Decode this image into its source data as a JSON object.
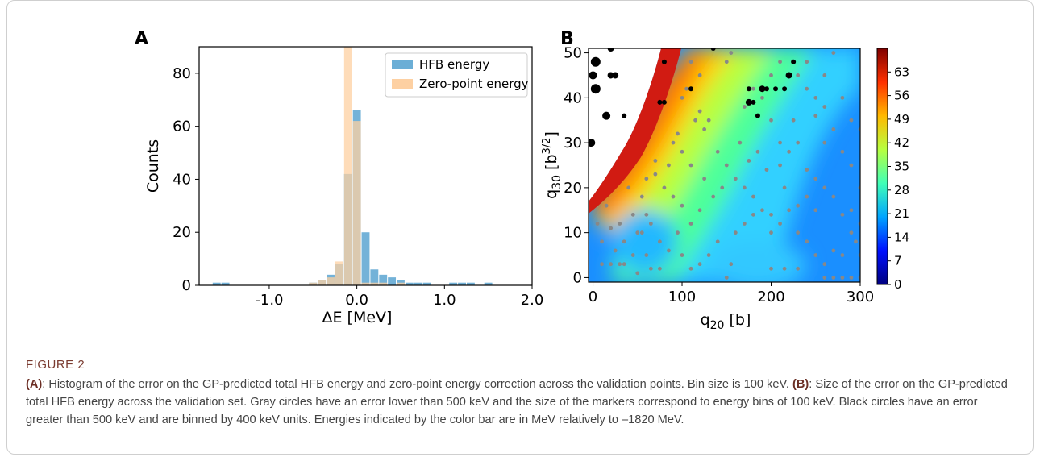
{
  "panels": {
    "a_label": "A",
    "b_label": "B"
  },
  "caption": {
    "title": "FIGURE 2",
    "a_tag": "(A)",
    "a_text": ": Histogram of the error on the GP-predicted total HFB energy and zero-point energy correction across the validation points. Bin size is 100 keV. ",
    "b_tag": "(B)",
    "b_text": ": Size of the error on the GP-predicted total HFB energy across the validation set. Gray circles have an error lower than 500 keV and the size of the markers correspond to energy bins of 100 keV. Black circles have an error greater than 500 keV and are binned by 400 keV units. Energies indicated by the color bar are in MeV relatively to –1820 MeV."
  },
  "chart_data": [
    {
      "type": "bar",
      "subtype": "overlaid-histogram",
      "xlabel": "ΔE [MeV]",
      "ylabel": "Counts",
      "xlim": [
        -1.8,
        2.0
      ],
      "ylim": [
        0,
        90
      ],
      "xticks": [
        -1.0,
        0.0,
        1.0,
        2.0
      ],
      "xtick_labels": [
        "-1.0",
        "0.0",
        "1.0",
        "2.0"
      ],
      "yticks": [
        0,
        20,
        40,
        60,
        80
      ],
      "ytick_labels": [
        "0",
        "20",
        "40",
        "60",
        "80"
      ],
      "legend_position": "top-right",
      "bin_width": 0.1,
      "series": [
        {
          "name": "HFB energy",
          "color": "#6baed6",
          "bins": [
            {
              "x": -1.6,
              "count": 1
            },
            {
              "x": -1.5,
              "count": 1
            },
            {
              "x": -0.5,
              "count": 1
            },
            {
              "x": -0.4,
              "count": 2
            },
            {
              "x": -0.3,
              "count": 4
            },
            {
              "x": -0.2,
              "count": 8
            },
            {
              "x": -0.1,
              "count": 42
            },
            {
              "x": 0.0,
              "count": 66
            },
            {
              "x": 0.1,
              "count": 20
            },
            {
              "x": 0.2,
              "count": 6
            },
            {
              "x": 0.3,
              "count": 4
            },
            {
              "x": 0.4,
              "count": 3
            },
            {
              "x": 0.5,
              "count": 2
            },
            {
              "x": 0.6,
              "count": 1
            },
            {
              "x": 0.7,
              "count": 1
            },
            {
              "x": 0.8,
              "count": 1
            },
            {
              "x": 1.1,
              "count": 1
            },
            {
              "x": 1.2,
              "count": 1
            },
            {
              "x": 1.3,
              "count": 1
            },
            {
              "x": 1.5,
              "count": 1
            }
          ]
        },
        {
          "name": "Zero-point energy",
          "color": "#fdd0a2",
          "bins": [
            {
              "x": -0.5,
              "count": 1
            },
            {
              "x": -0.4,
              "count": 2
            },
            {
              "x": -0.3,
              "count": 3
            },
            {
              "x": -0.2,
              "count": 9
            },
            {
              "x": -0.1,
              "count": 90
            },
            {
              "x": 0.0,
              "count": 62
            },
            {
              "x": 0.1,
              "count": 1
            },
            {
              "x": 0.2,
              "count": 1
            },
            {
              "x": 0.3,
              "count": 1
            },
            {
              "x": 0.5,
              "count": 1
            }
          ]
        }
      ]
    },
    {
      "type": "heatmap",
      "subtype": "contour-with-scatter",
      "xlabel": "q₂₀ [b]",
      "ylabel": "q₃₀ [b³ᐟ²]",
      "xlabel_main": "q",
      "xlabel_sub": "20",
      "xlabel_unit": " [b]",
      "ylabel_main": "q",
      "ylabel_sub": "30",
      "ylabel_unit": " [b",
      "ylabel_sup": "3/2",
      "ylabel_close": "]",
      "xlim": [
        -5,
        300
      ],
      "ylim": [
        -1,
        51
      ],
      "xticks": [
        0,
        100,
        200,
        300
      ],
      "yticks": [
        0,
        10,
        20,
        30,
        40,
        50
      ],
      "colorbar": {
        "min": 0,
        "max": 70,
        "ticks": [
          0,
          7,
          14,
          21,
          28,
          35,
          42,
          49,
          56,
          63
        ],
        "colors": [
          "#00007f",
          "#0010ff",
          "#00a4ff",
          "#40ffb7",
          "#b7ff40",
          "#ffb900",
          "#ff3000",
          "#7f0000"
        ]
      },
      "gray_points_error_lt_500keV": [
        [
          5,
          12
        ],
        [
          10,
          8
        ],
        [
          20,
          3
        ],
        [
          25,
          6
        ],
        [
          30,
          3
        ],
        [
          35,
          3
        ],
        [
          45,
          5
        ],
        [
          50,
          10
        ],
        [
          55,
          18
        ],
        [
          60,
          22
        ],
        [
          70,
          26
        ],
        [
          75,
          2
        ],
        [
          85,
          25
        ],
        [
          90,
          30
        ],
        [
          95,
          32
        ],
        [
          100,
          28
        ],
        [
          110,
          25
        ],
        [
          115,
          35
        ],
        [
          120,
          37
        ],
        [
          125,
          33
        ],
        [
          130,
          35
        ],
        [
          140,
          28
        ],
        [
          150,
          25
        ],
        [
          160,
          22
        ],
        [
          170,
          20
        ],
        [
          180,
          18
        ],
        [
          190,
          15
        ],
        [
          200,
          10
        ],
        [
          210,
          25
        ],
        [
          220,
          28
        ],
        [
          230,
          30
        ],
        [
          240,
          24
        ],
        [
          250,
          22
        ],
        [
          260,
          20
        ],
        [
          270,
          18
        ],
        [
          280,
          14
        ],
        [
          290,
          10
        ],
        [
          295,
          8
        ],
        [
          260,
          0
        ],
        [
          270,
          0
        ],
        [
          280,
          0
        ],
        [
          290,
          0
        ],
        [
          300,
          0
        ],
        [
          150,
          0
        ],
        [
          155,
          3
        ],
        [
          130,
          5
        ],
        [
          140,
          8
        ],
        [
          160,
          10
        ],
        [
          170,
          12
        ],
        [
          180,
          14
        ],
        [
          200,
          14
        ],
        [
          210,
          12
        ],
        [
          220,
          15
        ],
        [
          230,
          16
        ],
        [
          240,
          18
        ],
        [
          250,
          15
        ],
        [
          230,
          10
        ],
        [
          240,
          8
        ],
        [
          250,
          5
        ],
        [
          260,
          3
        ],
        [
          270,
          6
        ],
        [
          280,
          5
        ],
        [
          120,
          15
        ],
        [
          110,
          12
        ],
        [
          100,
          16
        ],
        [
          90,
          18
        ],
        [
          80,
          20
        ],
        [
          70,
          23
        ],
        [
          60,
          14
        ],
        [
          55,
          10
        ],
        [
          40,
          20
        ],
        [
          30,
          12
        ],
        [
          35,
          8
        ],
        [
          20,
          11
        ],
        [
          15,
          16
        ],
        [
          60,
          5
        ],
        [
          65,
          2
        ],
        [
          100,
          40
        ],
        [
          105,
          42
        ],
        [
          150,
          48
        ],
        [
          155,
          50
        ],
        [
          200,
          45
        ],
        [
          210,
          48
        ],
        [
          240,
          42
        ],
        [
          250,
          40
        ],
        [
          260,
          45
        ],
        [
          270,
          50
        ],
        [
          280,
          40
        ],
        [
          290,
          35
        ],
        [
          300,
          33
        ],
        [
          280,
          28
        ],
        [
          290,
          25
        ],
        [
          300,
          20
        ],
        [
          290,
          15
        ],
        [
          300,
          12
        ],
        [
          300,
          5
        ],
        [
          260,
          30
        ],
        [
          270,
          33
        ],
        [
          200,
          35
        ],
        [
          210,
          30
        ],
        [
          190,
          40
        ],
        [
          180,
          42
        ],
        [
          170,
          38
        ],
        [
          120,
          45
        ],
        [
          110,
          48
        ],
        [
          240,
          48
        ],
        [
          230,
          45
        ],
        [
          250,
          36
        ],
        [
          260,
          38
        ],
        [
          225,
          35
        ],
        [
          215,
          20
        ],
        [
          195,
          24
        ],
        [
          185,
          28
        ],
        [
          175,
          26
        ],
        [
          165,
          30
        ],
        [
          145,
          20
        ],
        [
          135,
          18
        ],
        [
          125,
          22
        ],
        [
          95,
          10
        ],
        [
          85,
          6
        ],
        [
          75,
          8
        ],
        [
          65,
          12
        ],
        [
          50,
          1
        ],
        [
          110,
          2
        ],
        [
          200,
          2
        ],
        [
          215,
          2
        ],
        [
          230,
          2
        ],
        [
          0,
          30
        ],
        [
          10,
          3
        ],
        [
          100,
          5
        ],
        [
          120,
          3
        ],
        [
          45,
          14
        ]
      ],
      "black_points_error_gt_500keV": [
        [
          3,
          48
        ],
        [
          0,
          45
        ],
        [
          3,
          42
        ],
        [
          20,
          45
        ],
        [
          25,
          45
        ],
        [
          15,
          36
        ],
        [
          35,
          36
        ],
        [
          20,
          51
        ],
        [
          -2,
          30
        ],
        [
          75,
          39
        ],
        [
          80,
          39
        ],
        [
          80,
          48
        ],
        [
          135,
          51
        ],
        [
          110,
          42
        ],
        [
          175,
          39
        ],
        [
          180,
          39
        ],
        [
          185,
          36
        ],
        [
          190,
          42
        ],
        [
          195,
          42
        ],
        [
          205,
          42
        ],
        [
          215,
          42
        ],
        [
          220,
          45
        ],
        [
          225,
          48
        ],
        [
          175,
          42
        ]
      ]
    }
  ]
}
